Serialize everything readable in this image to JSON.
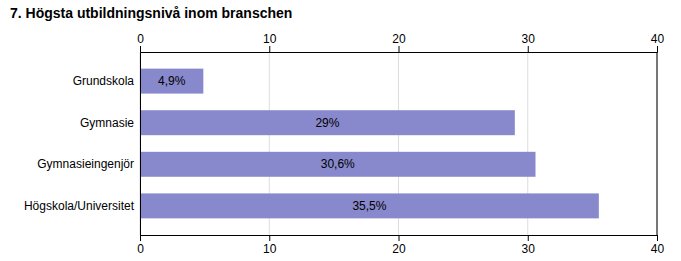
{
  "chart_data": {
    "type": "bar",
    "orientation": "horizontal",
    "title": "7. Högsta utbildningsnivå inom branschen",
    "categories": [
      "Grundskola",
      "Gymnasie",
      "Gymnasieingenjör",
      "Högskola/Universitet"
    ],
    "values": [
      4.9,
      29.0,
      30.6,
      35.5
    ],
    "value_labels": [
      "4,9%",
      "29%",
      "30,6%",
      "35,5%"
    ],
    "data_labels": true,
    "color": "#8888cc",
    "xlim": [
      0,
      40
    ],
    "xticks": [
      0,
      10,
      20,
      30,
      40
    ],
    "grid": true
  }
}
